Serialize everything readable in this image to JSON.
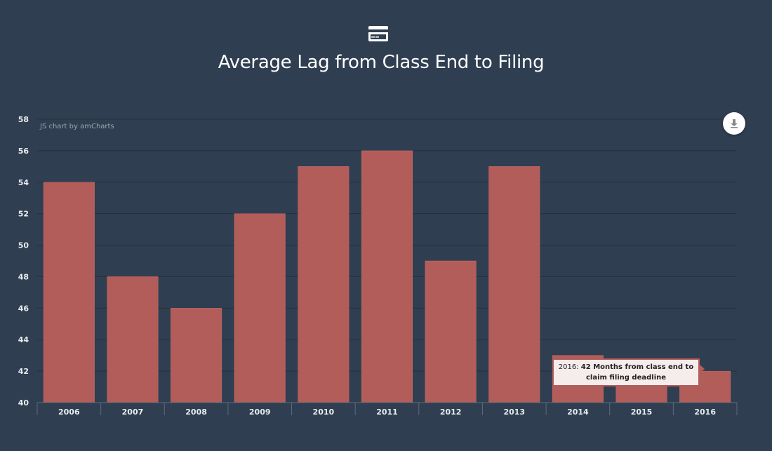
{
  "page": {
    "title": "Average Lag from Class End to Filing",
    "credit": "JS chart by amCharts"
  },
  "header": {
    "icon": "credit-card-icon"
  },
  "export": {
    "icon": "download-icon"
  },
  "tooltip": {
    "category": "2016",
    "separator": ":",
    "text": "42 Months from class end to claim filing deadline"
  },
  "colors": {
    "background": "#2f3e50",
    "bar": "#b35d5a",
    "grid": "#233140",
    "axis": "#5c6b7a",
    "text": "#e8ecf0"
  },
  "chart_data": {
    "type": "bar",
    "title": "Average Lag from Class End to Filing",
    "categories": [
      "2006",
      "2007",
      "2008",
      "2009",
      "2010",
      "2011",
      "2012",
      "2013",
      "2014",
      "2015",
      "2016"
    ],
    "values": [
      54,
      48,
      46,
      52,
      55,
      56,
      49,
      55,
      43,
      42,
      42
    ],
    "ylim": [
      40,
      58
    ],
    "yticks": [
      40,
      42,
      44,
      46,
      48,
      50,
      52,
      54,
      56,
      58
    ],
    "xlabel": "",
    "ylabel": "",
    "grid": true,
    "legend": "none"
  }
}
